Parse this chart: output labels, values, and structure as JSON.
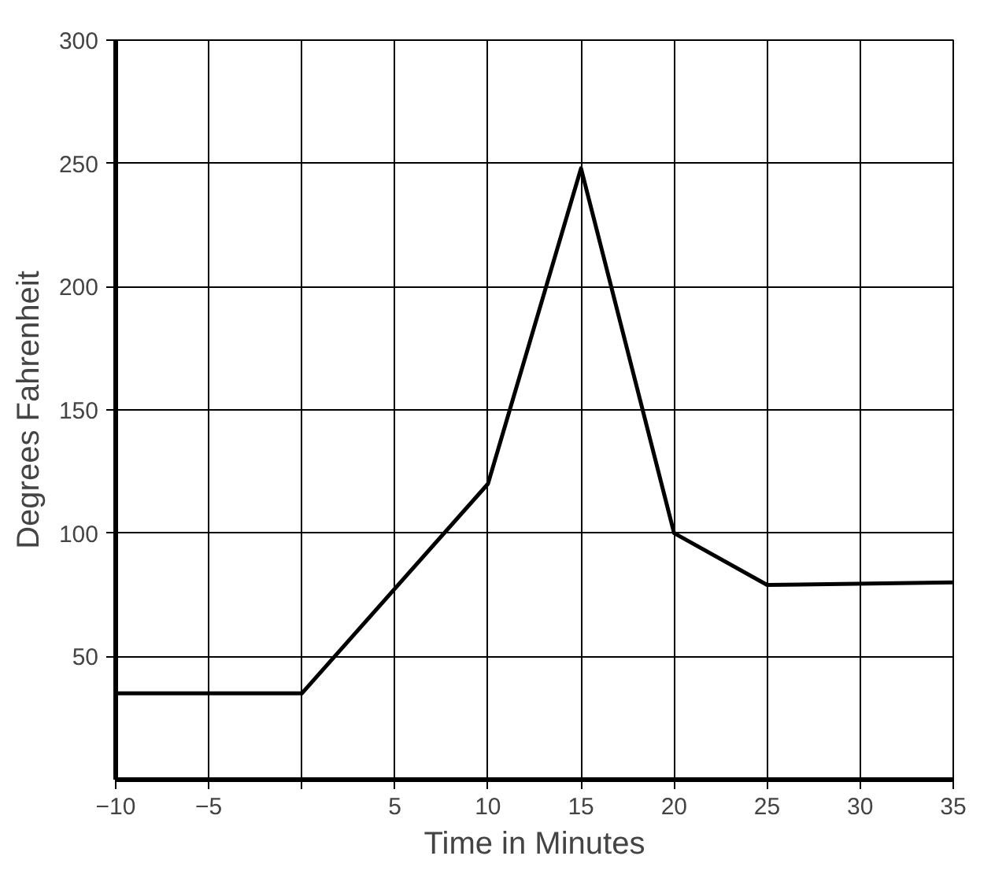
{
  "chart_data": {
    "type": "line",
    "xlabel": "Time in Minutes",
    "ylabel": "Degrees Fahrenheit",
    "x": [
      -10,
      0,
      10,
      15,
      20,
      25,
      35
    ],
    "series": [
      {
        "color": "#000000",
        "values": [
          35,
          35,
          120,
          248,
          100,
          79,
          80
        ]
      }
    ],
    "xlim": [
      -10,
      35
    ],
    "ylim": [
      0,
      300
    ],
    "xticks": [
      -10,
      -5,
      {
        "value": 0,
        "label": null
      },
      5,
      10,
      15,
      20,
      25,
      30,
      35
    ],
    "yticks": [
      50,
      100,
      150,
      200,
      250,
      300
    ],
    "grid": true,
    "marker": "none",
    "line_style": "solid"
  }
}
